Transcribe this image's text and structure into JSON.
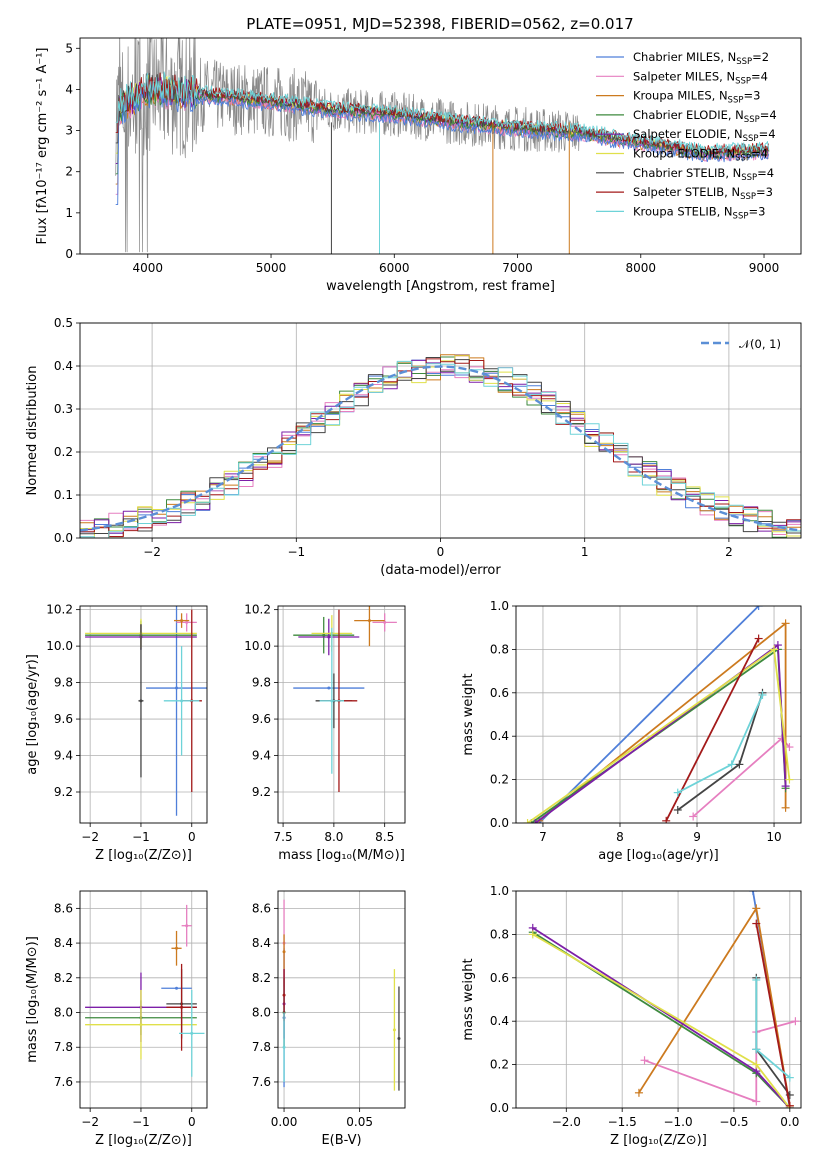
{
  "figure": {
    "title": "PLATE=0951, MJD=52398, FIBERID=0562, z=0.017"
  },
  "colors": {
    "spectrum": "#888888",
    "gaussian": "#5b8fd6",
    "models": [
      "#4f7fd9",
      "#e67fc0",
      "#cc7a1f",
      "#3e8a3e",
      "#7d1fa8",
      "#e0e04a",
      "#444444",
      "#a31a1a",
      "#6ed3d8"
    ]
  },
  "models": [
    {
      "label": "Chabrier MILES, N",
      "sub": "SSP",
      "suffix": "=2"
    },
    {
      "label": "Salpeter MILES, N",
      "sub": "SSP",
      "suffix": "=4"
    },
    {
      "label": "Kroupa MILES, N",
      "sub": "SSP",
      "suffix": "=3"
    },
    {
      "label": "Chabrier ELODIE, N",
      "sub": "SSP",
      "suffix": "=4"
    },
    {
      "label": "Salpeter ELODIE, N",
      "sub": "SSP",
      "suffix": "=4"
    },
    {
      "label": "Kroupa ELODIE, N",
      "sub": "SSP",
      "suffix": "=4"
    },
    {
      "label": "Chabrier STELIB, N",
      "sub": "SSP",
      "suffix": "=4"
    },
    {
      "label": "Salpeter STELIB, N",
      "sub": "SSP",
      "suffix": "=3"
    },
    {
      "label": "Kroupa STELIB, N",
      "sub": "SSP",
      "suffix": "=3"
    }
  ],
  "chart_data": [
    {
      "id": "spectrum",
      "type": "line",
      "xlabel": "wavelength [Angstrom, rest frame]",
      "ylabel": "Flux [fλ10⁻¹⁷ erg cm⁻² s⁻¹ A⁻¹]",
      "xlim": [
        3450,
        9300
      ],
      "ylim": [
        0,
        5.25
      ],
      "xticks": [
        4000,
        5000,
        6000,
        7000,
        8000,
        9000
      ],
      "yticks": [
        0,
        1,
        2,
        3,
        4,
        5
      ],
      "continuum": {
        "x": [
          3750,
          4000,
          4500,
          5000,
          5500,
          6000,
          6500,
          7000,
          7500,
          8000,
          8500,
          9000
        ],
        "y": [
          3.5,
          4.0,
          3.85,
          3.7,
          3.5,
          3.4,
          3.2,
          3.05,
          2.95,
          2.7,
          2.45,
          2.5
        ]
      }
    },
    {
      "id": "residuals",
      "type": "line",
      "xlabel": "(data-model)/error",
      "ylabel": "Normed distribution",
      "xlim": [
        -2.5,
        2.5
      ],
      "ylim": [
        0,
        0.5
      ],
      "xticks": [
        -2,
        -1,
        0,
        1,
        2
      ],
      "yticks": [
        0,
        0.1,
        0.2,
        0.3,
        0.4,
        0.5
      ],
      "legend": "𝒩(0, 1)",
      "grid": true
    },
    {
      "id": "age-vs-Z",
      "type": "scatter",
      "xlabel": "Z [log₁₀(Z/Z⊙)]",
      "ylabel": "age  [log₁₀(age/yr)]",
      "xlim": [
        -2.2,
        0.3
      ],
      "ylim": [
        9.03,
        10.22
      ],
      "xticks": [
        -2,
        -1,
        0
      ],
      "yticks": [
        9.2,
        9.4,
        9.6,
        9.8,
        10.0,
        10.2
      ],
      "points": [
        {
          "model": 0,
          "x": -0.3,
          "y": 9.77,
          "xerr": 0.6,
          "yerr": 0.7
        },
        {
          "model": 1,
          "x": -0.1,
          "y": 10.13,
          "xerr": 0.2,
          "yerr": 0.05
        },
        {
          "model": 2,
          "x": -0.2,
          "y": 10.14,
          "xerr": 0.15,
          "yerr": 0.04
        },
        {
          "model": 3,
          "x": -1.0,
          "y": 10.06,
          "xerr": 1.1,
          "yerr": 0.08
        },
        {
          "model": 4,
          "x": -1.0,
          "y": 10.05,
          "xerr": 1.1,
          "yerr": 0.07
        },
        {
          "model": 5,
          "x": -1.0,
          "y": 10.07,
          "xerr": 1.1,
          "yerr": 0.08
        },
        {
          "model": 6,
          "x": -1.0,
          "y": 9.7,
          "xerr": 0.05,
          "yerr": 0.42
        },
        {
          "model": 7,
          "x": 0.0,
          "y": 9.7,
          "xerr": 0.2,
          "yerr": 0.5
        },
        {
          "model": 8,
          "x": -0.2,
          "y": 9.7,
          "xerr": 0.35,
          "yerr": 0.3
        }
      ]
    },
    {
      "id": "age-vs-mass",
      "type": "scatter",
      "xlabel": "mass [log₁₀(M/M⊙)]",
      "ylabel": "",
      "xlim": [
        7.45,
        8.7
      ],
      "ylim": [
        9.03,
        10.22
      ],
      "xticks": [
        7.5,
        8.0,
        8.5
      ],
      "yticks": [
        9.2,
        9.4,
        9.6,
        9.8,
        10.0,
        10.2
      ],
      "points": [
        {
          "model": 0,
          "x": 7.95,
          "y": 9.77,
          "xerr": 0.35,
          "yerr": 0.0
        },
        {
          "model": 1,
          "x": 8.5,
          "y": 10.13,
          "xerr": 0.12,
          "yerr": 0.05
        },
        {
          "model": 2,
          "x": 8.35,
          "y": 10.14,
          "xerr": 0.15,
          "yerr": 0.14
        },
        {
          "model": 3,
          "x": 7.9,
          "y": 10.06,
          "xerr": 0.3,
          "yerr": 0.1
        },
        {
          "model": 4,
          "x": 7.95,
          "y": 10.05,
          "xerr": 0.3,
          "yerr": 0.1
        },
        {
          "model": 5,
          "x": 7.98,
          "y": 10.07,
          "xerr": 0.2,
          "yerr": 0.1
        },
        {
          "model": 6,
          "x": 8.0,
          "y": 9.7,
          "xerr": 0.18,
          "yerr": 0.15
        },
        {
          "model": 7,
          "x": 8.05,
          "y": 9.7,
          "xerr": 0.18,
          "yerr": 0.5
        },
        {
          "model": 8,
          "x": 7.98,
          "y": 9.7,
          "xerr": 0.12,
          "yerr": 0.4
        }
      ]
    },
    {
      "id": "mass-weight-vs-age",
      "type": "line",
      "xlabel": "age  [log₁₀(age/yr)]",
      "ylabel": "mass weight",
      "xlim": [
        6.65,
        10.35
      ],
      "ylim": [
        0,
        1
      ],
      "xticks": [
        7,
        8,
        9,
        10
      ],
      "yticks": [
        0.0,
        0.2,
        0.4,
        0.6,
        0.8,
        1.0
      ],
      "series": [
        {
          "model": 0,
          "x": [
            6.95,
            9.8
          ],
          "y": [
            0.0,
            1.0
          ]
        },
        {
          "model": 1,
          "x": [
            8.95,
            10.1,
            10.2
          ],
          "y": [
            0.03,
            0.39,
            0.35
          ]
        },
        {
          "model": 2,
          "x": [
            6.95,
            10.15,
            10.15
          ],
          "y": [
            0.01,
            0.92,
            0.07
          ]
        },
        {
          "model": 3,
          "x": [
            6.85,
            10.05,
            10.15
          ],
          "y": [
            0.0,
            0.8,
            0.16
          ]
        },
        {
          "model": 4,
          "x": [
            6.9,
            10.05,
            10.15
          ],
          "y": [
            0.0,
            0.82,
            0.17
          ]
        },
        {
          "model": 5,
          "x": [
            6.8,
            10.0,
            10.2
          ],
          "y": [
            0.0,
            0.8,
            0.2
          ]
        },
        {
          "model": 6,
          "x": [
            8.75,
            9.55,
            9.85
          ],
          "y": [
            0.06,
            0.27,
            0.6
          ]
        },
        {
          "model": 7,
          "x": [
            8.6,
            9.8
          ],
          "y": [
            0.01,
            0.85
          ]
        },
        {
          "model": 8,
          "x": [
            8.75,
            9.45,
            9.85
          ],
          "y": [
            0.14,
            0.27,
            0.59
          ]
        }
      ]
    },
    {
      "id": "mass-vs-Z",
      "type": "scatter",
      "xlabel": "Z [log₁₀(Z/Z⊙)]",
      "ylabel": "mass [log₁₀(M/M⊙)]",
      "xlim": [
        -2.2,
        0.3
      ],
      "ylim": [
        7.45,
        8.7
      ],
      "xticks": [
        -2,
        -1,
        0
      ],
      "yticks": [
        7.6,
        7.8,
        8.0,
        8.2,
        8.4,
        8.6
      ],
      "points": [
        {
          "model": 0,
          "x": -0.3,
          "y": 8.14,
          "xerr": 0.3,
          "yerr": 0.0
        },
        {
          "model": 1,
          "x": -0.1,
          "y": 8.5,
          "xerr": 0.1,
          "yerr": 0.12
        },
        {
          "model": 2,
          "x": -0.3,
          "y": 8.37,
          "xerr": 0.1,
          "yerr": 0.1
        },
        {
          "model": 3,
          "x": -1.0,
          "y": 7.97,
          "xerr": 1.1,
          "yerr": 0.1
        },
        {
          "model": 4,
          "x": -1.0,
          "y": 8.03,
          "xerr": 1.1,
          "yerr": 0.2
        },
        {
          "model": 5,
          "x": -1.0,
          "y": 7.93,
          "xerr": 1.1,
          "yerr": 0.2
        },
        {
          "model": 6,
          "x": -0.2,
          "y": 8.05,
          "xerr": 0.3,
          "yerr": 0.2
        },
        {
          "model": 7,
          "x": -0.2,
          "y": 8.03,
          "xerr": 0.3,
          "yerr": 0.25
        },
        {
          "model": 8,
          "x": 0.0,
          "y": 7.88,
          "xerr": 0.25,
          "yerr": 0.25
        }
      ]
    },
    {
      "id": "mass-vs-ebv",
      "type": "scatter",
      "xlabel": "E(B-V)",
      "ylabel": "",
      "xlim": [
        -0.004,
        0.08
      ],
      "ylim": [
        7.45,
        8.7
      ],
      "xticks": [
        0.0,
        0.05
      ],
      "yticks": [
        7.6,
        7.8,
        8.0,
        8.2,
        8.4,
        8.6
      ],
      "points": [
        {
          "model": 0,
          "x": 0.0,
          "y": 7.97,
          "xerr": 0.0,
          "yerr": 0.4
        },
        {
          "model": 1,
          "x": 0.0,
          "y": 8.4,
          "xerr": 0.0,
          "yerr": 0.25
        },
        {
          "model": 2,
          "x": 0.0,
          "y": 8.35,
          "xerr": 0.0,
          "yerr": 0.1
        },
        {
          "model": 3,
          "x": 0.0,
          "y": 8.0,
          "xerr": 0.0,
          "yerr": 0.2
        },
        {
          "model": 4,
          "x": 0.0,
          "y": 8.05,
          "xerr": 0.0,
          "yerr": 0.2
        },
        {
          "model": 5,
          "x": 0.073,
          "y": 7.9,
          "xerr": 0.0,
          "yerr": 0.35
        },
        {
          "model": 6,
          "x": 0.076,
          "y": 7.85,
          "xerr": 0.0,
          "yerr": 0.3
        },
        {
          "model": 7,
          "x": 0.0,
          "y": 8.1,
          "xerr": 0.0,
          "yerr": 0.15
        },
        {
          "model": 8,
          "x": 0.0,
          "y": 7.8,
          "xerr": 0.0,
          "yerr": 0.2
        }
      ]
    },
    {
      "id": "mass-weight-vs-Z",
      "type": "line",
      "xlabel": "Z [log₁₀(Z/Z⊙)]",
      "ylabel": "mass weight",
      "xlim": [
        -2.45,
        0.1
      ],
      "ylim": [
        0,
        1
      ],
      "xticks": [
        -2.0,
        -1.5,
        -1.0,
        -0.5,
        0.0
      ],
      "yticks": [
        0.0,
        0.2,
        0.4,
        0.6,
        0.8,
        1.0
      ],
      "series": [
        {
          "model": 0,
          "x": [
            -0.33,
            0.0
          ],
          "y": [
            1.0,
            0.0
          ]
        },
        {
          "model": 1,
          "x": [
            -1.3,
            -0.3,
            -0.3,
            0.05
          ],
          "y": [
            0.22,
            0.03,
            0.35,
            0.4
          ]
        },
        {
          "model": 2,
          "x": [
            -1.35,
            -0.3,
            0.0
          ],
          "y": [
            0.07,
            0.92,
            0.01
          ]
        },
        {
          "model": 3,
          "x": [
            -2.3,
            -0.3,
            0.0
          ],
          "y": [
            0.81,
            0.16,
            0.0
          ]
        },
        {
          "model": 4,
          "x": [
            -2.3,
            -0.3,
            0.0
          ],
          "y": [
            0.83,
            0.17,
            0.0
          ]
        },
        {
          "model": 5,
          "x": [
            -2.3,
            -0.3,
            0.0
          ],
          "y": [
            0.8,
            0.2,
            0.0
          ]
        },
        {
          "model": 6,
          "x": [
            -0.3,
            -0.3,
            0.0
          ],
          "y": [
            0.6,
            0.27,
            0.06
          ]
        },
        {
          "model": 7,
          "x": [
            -0.3,
            0.0
          ],
          "y": [
            0.85,
            0.01
          ]
        },
        {
          "model": 8,
          "x": [
            -0.3,
            -0.3,
            0.0
          ],
          "y": [
            0.59,
            0.27,
            0.14
          ]
        }
      ]
    }
  ]
}
